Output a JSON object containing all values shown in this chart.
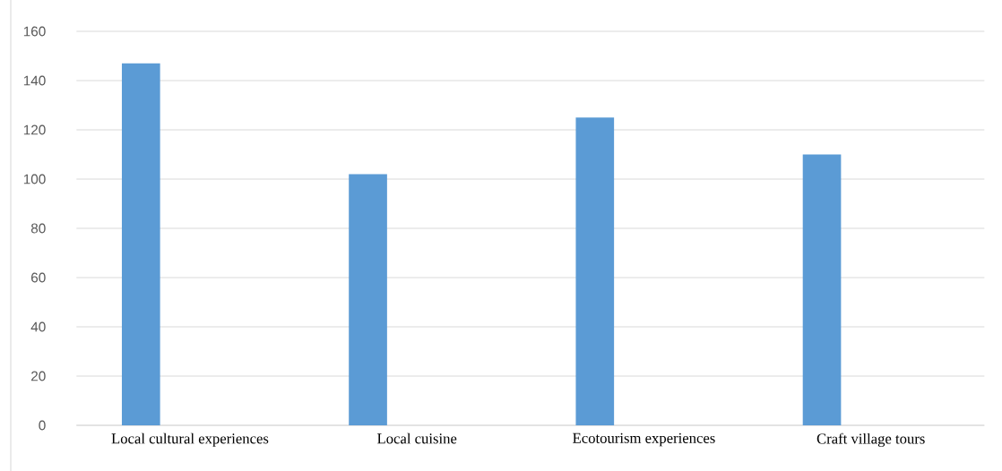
{
  "chart_data": {
    "type": "bar",
    "categories": [
      "Local cultural experiences",
      "Local cuisine",
      "Ecotourism experiences",
      "Craft village tours"
    ],
    "values": [
      147,
      102,
      125,
      110
    ],
    "color": "#5b9bd5",
    "ylim": [
      0,
      160
    ],
    "yticks": [
      0,
      20,
      40,
      60,
      80,
      100,
      120,
      140,
      160
    ],
    "grid": "y"
  }
}
